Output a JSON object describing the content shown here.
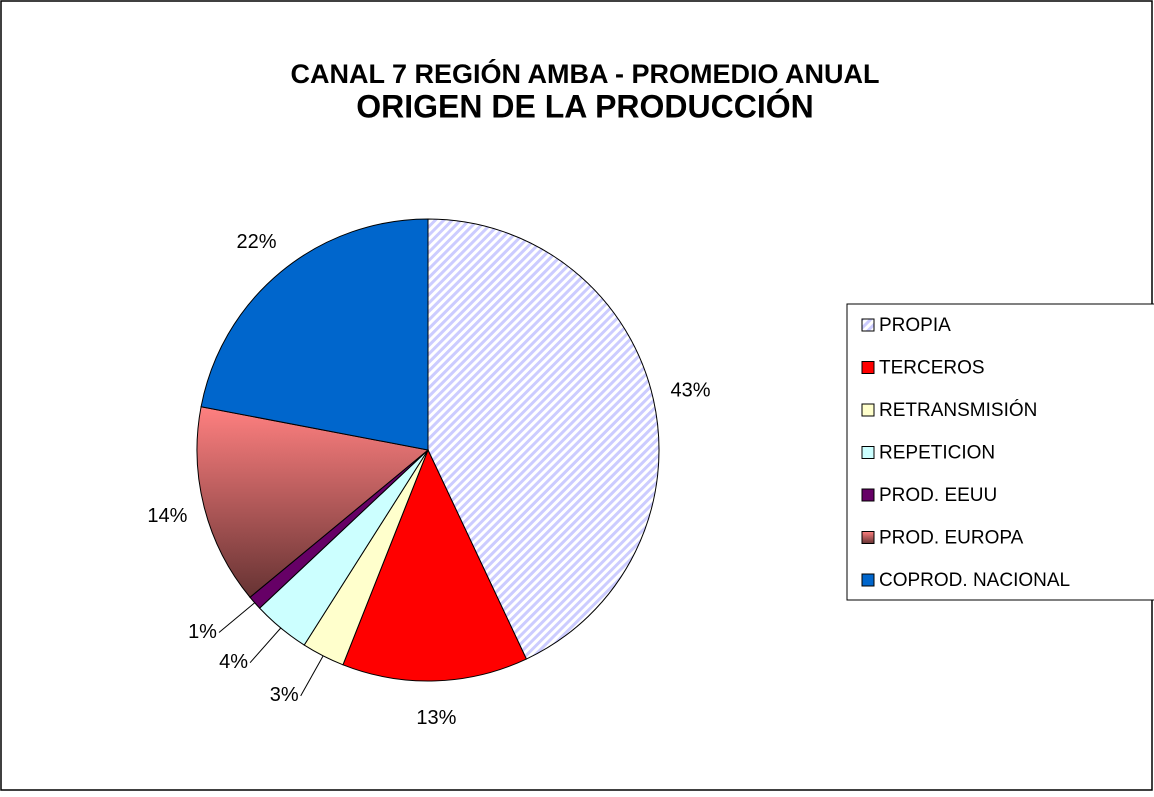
{
  "chart_data": {
    "type": "pie",
    "title": "CANAL 7 REGIÓN AMBA - PROMEDIO ANUAL",
    "subtitle": "ORIGEN DE LA PRODUCCIÓN",
    "categories": [
      "PROPIA",
      "TERCEROS",
      "RETRANSMISIÓN",
      "REPETICION",
      "PROD. EEUU",
      "PROD. EUROPA",
      "COPROD. NACIONAL"
    ],
    "values": [
      43,
      13,
      3,
      4,
      1,
      14,
      22
    ],
    "value_labels": [
      "43%",
      "13%",
      "3%",
      "4%",
      "1%",
      "14%",
      "22%"
    ],
    "colors": [
      "#ccccff",
      "#ff0000",
      "#ffffcc",
      "#ccffff",
      "#660066",
      "#ff8080",
      "#0066cc"
    ],
    "fill_styles": [
      "hatch",
      "solid",
      "solid",
      "solid",
      "solid",
      "gradient",
      "solid"
    ],
    "legend": "right"
  }
}
